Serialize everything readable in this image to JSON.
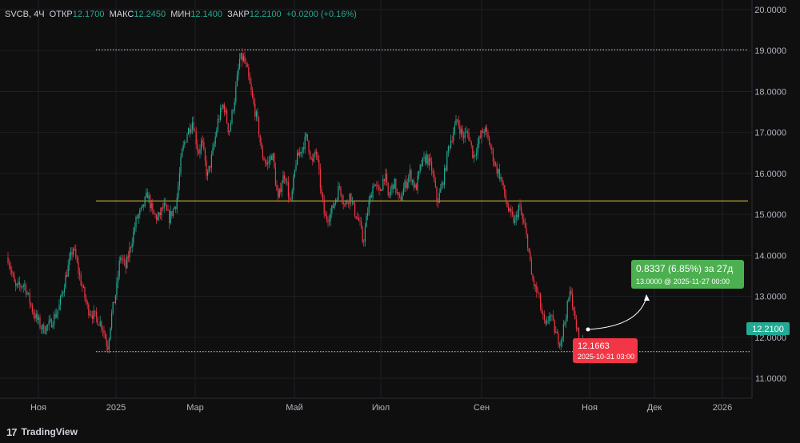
{
  "header": {
    "symbol": "SVCB",
    "interval": "4Ч",
    "open_label": "ОТКР",
    "open_value": "12.1700",
    "high_label": "МАКС",
    "high_value": "12.2450",
    "low_label": "МИН",
    "low_value": "12.1400",
    "close_label": "ЗАКР",
    "close_value": "12.2100",
    "change": "+0.0200 (+0.16%)"
  },
  "branding": {
    "logo_icon": "tradingview-logo-icon",
    "name": "TradingView"
  },
  "colors": {
    "background": "#0f0f0f",
    "grid": "#1e1f24",
    "up": "#22ab94",
    "down": "#f23645",
    "hline": "#e8c547",
    "price_badge": "#22ab94",
    "low_badge": "#f23645",
    "measure_badge": "#4caf50"
  },
  "chart_data": {
    "type": "candlestick",
    "ylim": [
      10.5,
      20.1
    ],
    "y_ticks": [
      "20.0000",
      "19.0000",
      "18.0000",
      "17.0000",
      "16.0000",
      "15.0000",
      "14.0000",
      "13.0000",
      "12.0000",
      "11.0000"
    ],
    "x_ticks": [
      "Ноя",
      "2025",
      "Мар",
      "Май",
      "Июл",
      "Сен",
      "Ноя",
      "Дек",
      "2026"
    ],
    "last_price": "12.2100",
    "horizontal_lines": [
      {
        "style": "dotted",
        "value": 19.02
      },
      {
        "style": "solid",
        "value": 15.33
      },
      {
        "style": "dotted",
        "value": 11.65
      }
    ],
    "low_label": {
      "price": "12.1663",
      "time": "2025-10-31 03:00"
    },
    "projection": {
      "text": "0.8337 (6.85%) за 27д",
      "sub": "13.0000 @ 2025-11-27  00:00"
    },
    "price_path": [
      [
        0,
        13.95
      ],
      [
        8,
        13.2
      ],
      [
        18,
        13.3
      ],
      [
        28,
        12.6
      ],
      [
        38,
        12.2
      ],
      [
        46,
        12.3
      ],
      [
        56,
        12.7
      ],
      [
        64,
        13.5
      ],
      [
        72,
        14.2
      ],
      [
        80,
        13.4
      ],
      [
        88,
        12.7
      ],
      [
        96,
        12.5
      ],
      [
        104,
        12.3
      ],
      [
        110,
        11.75
      ],
      [
        114,
        12.5
      ],
      [
        120,
        13.2
      ],
      [
        124,
        14.0
      ],
      [
        130,
        13.7
      ],
      [
        136,
        14.3
      ],
      [
        142,
        14.9
      ],
      [
        148,
        15.1
      ],
      [
        154,
        15.5
      ],
      [
        160,
        15.0
      ],
      [
        166,
        14.9
      ],
      [
        172,
        15.2
      ],
      [
        178,
        14.9
      ],
      [
        186,
        15.3
      ],
      [
        192,
        16.5
      ],
      [
        198,
        17.0
      ],
      [
        204,
        17.3
      ],
      [
        210,
        16.5
      ],
      [
        214,
        16.8
      ],
      [
        220,
        15.9
      ],
      [
        226,
        16.5
      ],
      [
        232,
        17.3
      ],
      [
        238,
        17.7
      ],
      [
        244,
        17.0
      ],
      [
        250,
        17.8
      ],
      [
        256,
        18.8
      ],
      [
        260,
        18.8
      ],
      [
        264,
        18.5
      ],
      [
        270,
        17.8
      ],
      [
        276,
        17.2
      ],
      [
        280,
        16.5
      ],
      [
        286,
        16.2
      ],
      [
        292,
        16.5
      ],
      [
        298,
        15.3
      ],
      [
        302,
        15.8
      ],
      [
        306,
        16.0
      ],
      [
        312,
        15.2
      ],
      [
        318,
        16.3
      ],
      [
        324,
        16.6
      ],
      [
        330,
        16.9
      ],
      [
        336,
        16.2
      ],
      [
        340,
        16.6
      ],
      [
        346,
        15.5
      ],
      [
        350,
        14.9
      ],
      [
        356,
        15.0
      ],
      [
        362,
        15.4
      ],
      [
        366,
        15.7
      ],
      [
        372,
        15.2
      ],
      [
        378,
        15.5
      ],
      [
        382,
        15.1
      ],
      [
        388,
        14.8
      ],
      [
        392,
        14.3
      ],
      [
        398,
        15.2
      ],
      [
        404,
        15.8
      ],
      [
        410,
        15.5
      ],
      [
        416,
        16.0
      ],
      [
        420,
        15.4
      ],
      [
        426,
        15.8
      ],
      [
        432,
        15.3
      ],
      [
        438,
        15.7
      ],
      [
        444,
        16.0
      ],
      [
        450,
        15.6
      ],
      [
        456,
        16.2
      ],
      [
        462,
        16.4
      ],
      [
        468,
        16.1
      ],
      [
        474,
        15.3
      ],
      [
        478,
        15.6
      ],
      [
        482,
        16.0
      ],
      [
        486,
        16.6
      ],
      [
        490,
        16.9
      ],
      [
        496,
        17.3
      ],
      [
        502,
        16.9
      ],
      [
        508,
        17.0
      ],
      [
        514,
        16.4
      ],
      [
        520,
        16.8
      ],
      [
        526,
        17.1
      ],
      [
        532,
        16.7
      ],
      [
        538,
        16.2
      ],
      [
        544,
        15.9
      ],
      [
        550,
        15.3
      ],
      [
        554,
        15.0
      ],
      [
        560,
        14.8
      ],
      [
        564,
        15.2
      ],
      [
        570,
        14.7
      ],
      [
        574,
        14.3
      ],
      [
        578,
        13.5
      ],
      [
        582,
        13.2
      ],
      [
        586,
        13.0
      ],
      [
        590,
        12.5
      ],
      [
        594,
        12.2
      ],
      [
        598,
        12.6
      ],
      [
        602,
        12.3
      ],
      [
        606,
        12.0
      ],
      [
        610,
        11.9
      ],
      [
        614,
        12.3
      ],
      [
        618,
        12.8
      ],
      [
        622,
        13.2
      ],
      [
        624,
        12.6
      ],
      [
        628,
        12.2
      ],
      [
        632,
        11.8
      ],
      [
        636,
        12.1
      ]
    ]
  }
}
